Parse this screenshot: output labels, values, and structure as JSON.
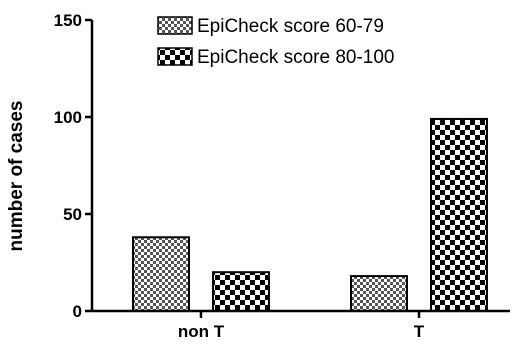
{
  "chart_data": {
    "type": "bar",
    "categories": [
      "non T",
      "T"
    ],
    "series": [
      {
        "name": "EpiCheck score 60-79",
        "values": [
          38,
          18
        ],
        "pattern": "fine-checker"
      },
      {
        "name": "EpiCheck score 80-100",
        "values": [
          20,
          99
        ],
        "pattern": "coarse-checker"
      }
    ],
    "xlabel": "",
    "ylabel": "number of cases",
    "ylim": [
      0,
      150
    ],
    "yticks": [
      0,
      50,
      100,
      150
    ],
    "grid": false,
    "legend_position": "top-right",
    "colors": {
      "ink": "#000000",
      "background": "#ffffff"
    }
  }
}
